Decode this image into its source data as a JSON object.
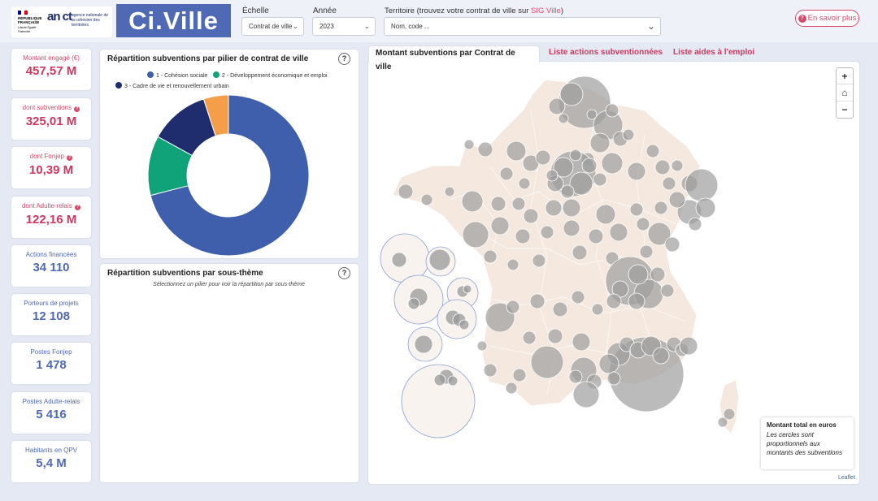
{
  "header": {
    "rf_lines": [
      "RÉPUBLIQUE",
      "FRANÇAISE"
    ],
    "rf_motto": "Liberté Égalité Fraternité",
    "anct_logo": "an ct",
    "anct_subtitle": "agence nationale de la cohésion des territoires",
    "app_title": "Ci.Ville",
    "echelle_label": "Échelle",
    "echelle_value": "Contrat de ville",
    "annee_label": "Année",
    "annee_value": "2023",
    "territoire_label_prefix": "Territoire (trouvez votre contrat de ville sur ",
    "territoire_label_link": "SIG Ville",
    "territoire_label_suffix": ")",
    "territoire_placeholder": "Nom, code ...",
    "info_button": "En savoir plus"
  },
  "kpis": [
    {
      "label": "Montant engagé (€)",
      "value": "457,57 M",
      "style": "red",
      "help": false
    },
    {
      "label": "dont subventions",
      "value": "325,01 M",
      "style": "red",
      "help": true
    },
    {
      "label": "dont Fonjep",
      "value": "10,39 M",
      "style": "red",
      "help": true
    },
    {
      "label": "dont Adulte-relais",
      "value": "122,16 M",
      "style": "red",
      "help": true
    },
    {
      "label": "Actions financées",
      "value": "34 110",
      "style": "blue",
      "help": false
    },
    {
      "label": "Porteurs de projets",
      "value": "12 108",
      "style": "blue",
      "help": false
    },
    {
      "label": "Postes Fonjep",
      "value": "1 478",
      "style": "blue",
      "help": false
    },
    {
      "label": "Postes Adulte-relais",
      "value": "5 416",
      "style": "blue",
      "help": false
    },
    {
      "label": "Habitants en QPV",
      "value": "5,4 M",
      "style": "blue",
      "help": false
    }
  ],
  "donut_panel": {
    "title": "Répartition subventions par pilier de contrat de ville",
    "help": "?"
  },
  "chart_data": {
    "type": "pie",
    "title": "Répartition subventions par pilier de contrat de ville",
    "categories": [
      "1 - Cohésion sociale",
      "2 - Développement économique et emploi",
      "3 - Cadre de vie et renouvellement urbain",
      ""
    ],
    "values": [
      71,
      12,
      12,
      5
    ],
    "colors": [
      "#3f5eab",
      "#10a37a",
      "#1f2d6e",
      "#f59e4a"
    ],
    "legend": "top"
  },
  "subtheme_panel": {
    "title": "Répartition subventions par sous-thème",
    "help": "?",
    "hint": "Sélectionnez un pilier pour voir la répartition par sous-thème"
  },
  "tabs": [
    {
      "label": "Montant subventions par Contrat de ville",
      "active": true
    },
    {
      "label": "Liste actions subventionnées",
      "active": false
    },
    {
      "label": "Liste aides à l'emploi",
      "active": false
    }
  ],
  "map": {
    "zoom_in": "+",
    "home": "⌂",
    "zoom_out": "−",
    "legend_title": "Montant total en euros",
    "legend_text_lines": [
      "Les cercles sont",
      "proportionnels aux",
      "montants des subventions"
    ],
    "attribution": "Leaflet",
    "colors": {
      "land": "#f4e8df",
      "border": "#ffffff",
      "bubble": "#9e9e9e",
      "inset": "#8b9fd6"
    }
  }
}
